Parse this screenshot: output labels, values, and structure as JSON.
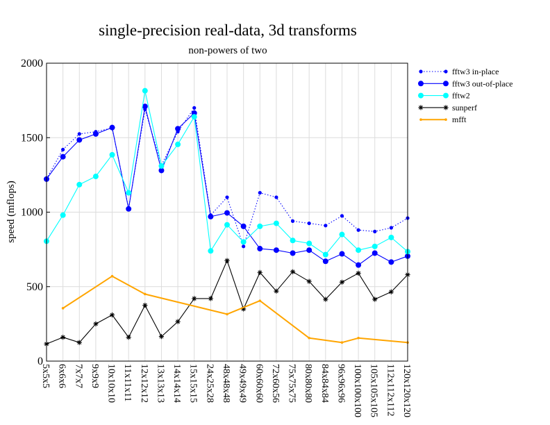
{
  "chart_data": {
    "type": "line",
    "title": "single-precision real-data, 3d transforms",
    "subtitle": "non-powers of two",
    "xlabel": "",
    "ylabel": "speed (mflops)",
    "ylim": [
      0,
      2000
    ],
    "yticks": [
      0,
      500,
      1000,
      1500,
      2000
    ],
    "grid": true,
    "legend_position": "top-right outside",
    "categories": [
      "5x5x5",
      "6x6x6",
      "7x7x7",
      "9x9x9",
      "10x10x10",
      "11x11x11",
      "12x12x12",
      "13x13x13",
      "14x14x14",
      "15x15x15",
      "24x25x28",
      "48x48x48",
      "49x49x49",
      "60x60x60",
      "72x60x56",
      "75x75x75",
      "80x80x80",
      "84x84x84",
      "96x96x96",
      "100x100x100",
      "105x105x105",
      "112x112x112",
      "120x120x120"
    ],
    "series": [
      {
        "name": "fftw3 in-place",
        "color": "#0000ff",
        "marker": "small-dot",
        "dash": "dotted",
        "values": [
          1225,
          1420,
          1525,
          1540,
          1565,
          1025,
          1690,
          1315,
          1540,
          1700,
          980,
          1100,
          770,
          1130,
          1100,
          940,
          925,
          910,
          975,
          880,
          870,
          895,
          960
        ]
      },
      {
        "name": "fftw3 out-of-place",
        "color": "#0000ff",
        "marker": "large-dot",
        "dash": "solid",
        "values": [
          1222,
          1372,
          1485,
          1525,
          1568,
          1022,
          1710,
          1280,
          1560,
          1665,
          970,
          995,
          905,
          755,
          745,
          725,
          745,
          670,
          720,
          645,
          725,
          665,
          705
        ]
      },
      {
        "name": "fftw2",
        "color": "#00ffff",
        "marker": "large-dot",
        "dash": "solid",
        "values": [
          805,
          980,
          1185,
          1240,
          1385,
          1130,
          1815,
          1310,
          1455,
          1640,
          740,
          915,
          800,
          905,
          925,
          810,
          790,
          715,
          850,
          745,
          770,
          830,
          735
        ]
      },
      {
        "name": "sunperf",
        "color": "#000000",
        "marker": "star",
        "dash": "solid",
        "values": [
          115,
          160,
          125,
          250,
          310,
          160,
          375,
          165,
          265,
          420,
          420,
          675,
          350,
          595,
          470,
          600,
          535,
          415,
          530,
          590,
          415,
          465,
          580
        ]
      },
      {
        "name": "mfft",
        "color": "#ffa500",
        "marker": "tiny-dot",
        "dash": "solid",
        "values": [
          null,
          355,
          null,
          null,
          570,
          null,
          450,
          null,
          null,
          null,
          null,
          315,
          null,
          405,
          null,
          null,
          155,
          null,
          125,
          155,
          null,
          null,
          125
        ]
      }
    ]
  }
}
